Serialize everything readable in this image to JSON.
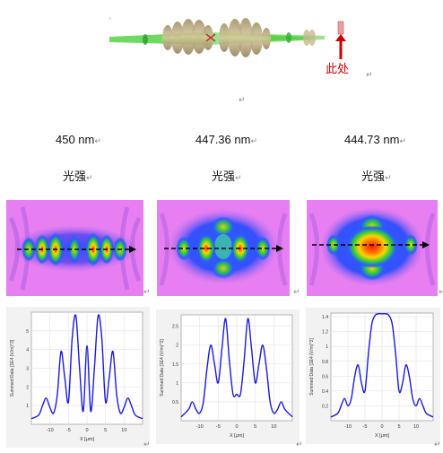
{
  "optics": {
    "annotation": "此处",
    "left_mark": "'"
  },
  "para_mark": "↵",
  "columns": [
    {
      "wavelength": "450 nm",
      "intensity_label": "光强"
    },
    {
      "wavelength": "447.36 nm",
      "intensity_label": "光强"
    },
    {
      "wavelength": "444.73 nm",
      "intensity_label": "光强"
    }
  ],
  "chart_data": [
    {
      "type": "line",
      "ylabel": "Summed Data [1E4 (V/m)^2]",
      "xlabel": "X [μm]",
      "xlim": [
        -15,
        15
      ],
      "ylim": [
        0,
        6
      ],
      "x_ticks": [
        "-10",
        "-5",
        "0",
        "5",
        "10"
      ],
      "y_ticks": [
        "1",
        "2",
        "3",
        "4",
        "5"
      ],
      "series": [
        {
          "x": [
            -15,
            -13,
            -12,
            -11,
            -10,
            -9,
            -8,
            -7,
            -6,
            -5,
            -4,
            -3,
            -2,
            -1,
            0,
            1,
            2,
            3,
            4,
            5,
            6,
            7,
            8,
            9,
            10,
            11,
            12,
            13,
            15
          ],
          "y": [
            0.3,
            0.5,
            1.0,
            1.4,
            0.9,
            0.6,
            1.6,
            3.9,
            2.5,
            1.2,
            4.6,
            5.8,
            3.0,
            0.7,
            4.2,
            0.7,
            3.0,
            5.8,
            4.6,
            1.2,
            2.5,
            3.9,
            1.6,
            0.6,
            0.9,
            1.4,
            1.0,
            0.5,
            0.3
          ]
        }
      ]
    },
    {
      "type": "line",
      "ylabel": "Summed Data [1E4 (V/m)^2]",
      "xlabel": "X [μm]",
      "xlim": [
        -15,
        15
      ],
      "ylim": [
        0,
        2.8
      ],
      "x_ticks": [
        "-10",
        "-5",
        "0",
        "5",
        "10"
      ],
      "y_ticks": [
        "0.5",
        "1",
        "1.5",
        "2",
        "2.5"
      ],
      "series": [
        {
          "x": [
            -15,
            -13,
            -12,
            -11,
            -10,
            -9,
            -8,
            -7,
            -6,
            -5,
            -4,
            -3,
            -2,
            -1,
            0,
            1,
            2,
            3,
            4,
            5,
            6,
            7,
            8,
            9,
            10,
            11,
            12,
            13,
            15
          ],
          "y": [
            0.1,
            0.3,
            0.5,
            0.3,
            0.2,
            0.5,
            1.4,
            2.0,
            1.5,
            1.0,
            1.9,
            2.7,
            1.6,
            0.7,
            0.7,
            0.7,
            1.6,
            2.7,
            1.9,
            1.0,
            1.5,
            2.0,
            1.4,
            0.5,
            0.2,
            0.3,
            0.5,
            0.3,
            0.1
          ]
        }
      ]
    },
    {
      "type": "line",
      "ylabel": "Summed Data [1E4 (V/m)^2]",
      "xlabel": "X [μm]",
      "xlim": [
        -15,
        15
      ],
      "ylim": [
        0,
        1.45
      ],
      "x_ticks": [
        "-10",
        "-5",
        "0",
        "5",
        "10"
      ],
      "y_ticks": [
        "0.2",
        "0.4",
        "0.6",
        "0.8",
        "1",
        "1.2",
        "1.4"
      ],
      "series": [
        {
          "x": [
            -15,
            -13,
            -12,
            -11,
            -10,
            -9,
            -8,
            -7,
            -6,
            -5,
            -4,
            -3,
            -2,
            -1,
            0,
            1,
            2,
            3,
            4,
            5,
            6,
            7,
            8,
            9,
            10,
            11,
            12,
            13,
            15
          ],
          "y": [
            0.05,
            0.1,
            0.2,
            0.3,
            0.2,
            0.3,
            0.6,
            0.75,
            0.5,
            0.4,
            0.9,
            1.3,
            1.42,
            1.44,
            1.44,
            1.44,
            1.42,
            1.3,
            0.9,
            0.4,
            0.5,
            0.75,
            0.6,
            0.3,
            0.2,
            0.3,
            0.2,
            0.1,
            0.05
          ]
        }
      ]
    }
  ]
}
